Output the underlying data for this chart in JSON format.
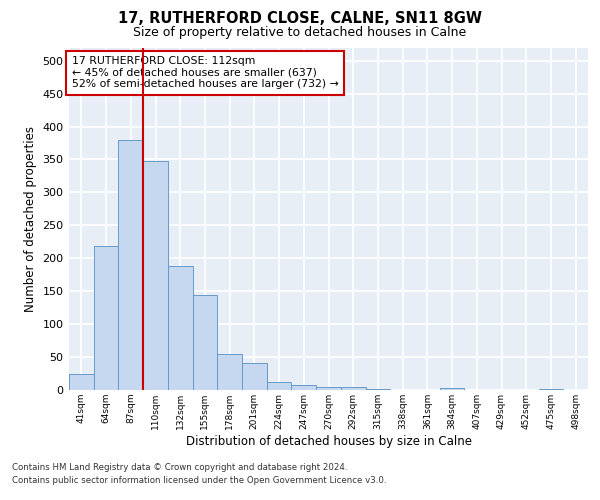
{
  "title1": "17, RUTHERFORD CLOSE, CALNE, SN11 8GW",
  "title2": "Size of property relative to detached houses in Calne",
  "xlabel": "Distribution of detached houses by size in Calne",
  "ylabel": "Number of detached properties",
  "categories": [
    "41sqm",
    "64sqm",
    "87sqm",
    "110sqm",
    "132sqm",
    "155sqm",
    "178sqm",
    "201sqm",
    "224sqm",
    "247sqm",
    "270sqm",
    "292sqm",
    "315sqm",
    "338sqm",
    "361sqm",
    "384sqm",
    "407sqm",
    "429sqm",
    "452sqm",
    "475sqm",
    "498sqm"
  ],
  "values": [
    25,
    218,
    380,
    348,
    188,
    144,
    54,
    41,
    12,
    8,
    5,
    4,
    1,
    0,
    0,
    3,
    0,
    0,
    0,
    1,
    0
  ],
  "bar_color": "#c5d8f0",
  "bar_edge_color": "#6699cc",
  "vline_color": "#cc0000",
  "annotation_text": "17 RUTHERFORD CLOSE: 112sqm\n← 45% of detached houses are smaller (637)\n52% of semi-detached houses are larger (732) →",
  "annotation_box_color": "#ffffff",
  "annotation_box_edge": "#cc0000",
  "bg_color": "#ffffff",
  "plot_bg_color": "#e8eef6",
  "footer1": "Contains HM Land Registry data © Crown copyright and database right 2024.",
  "footer2": "Contains public sector information licensed under the Open Government Licence v3.0.",
  "ylim": [
    0,
    520
  ],
  "yticks": [
    0,
    50,
    100,
    150,
    200,
    250,
    300,
    350,
    400,
    450,
    500
  ]
}
